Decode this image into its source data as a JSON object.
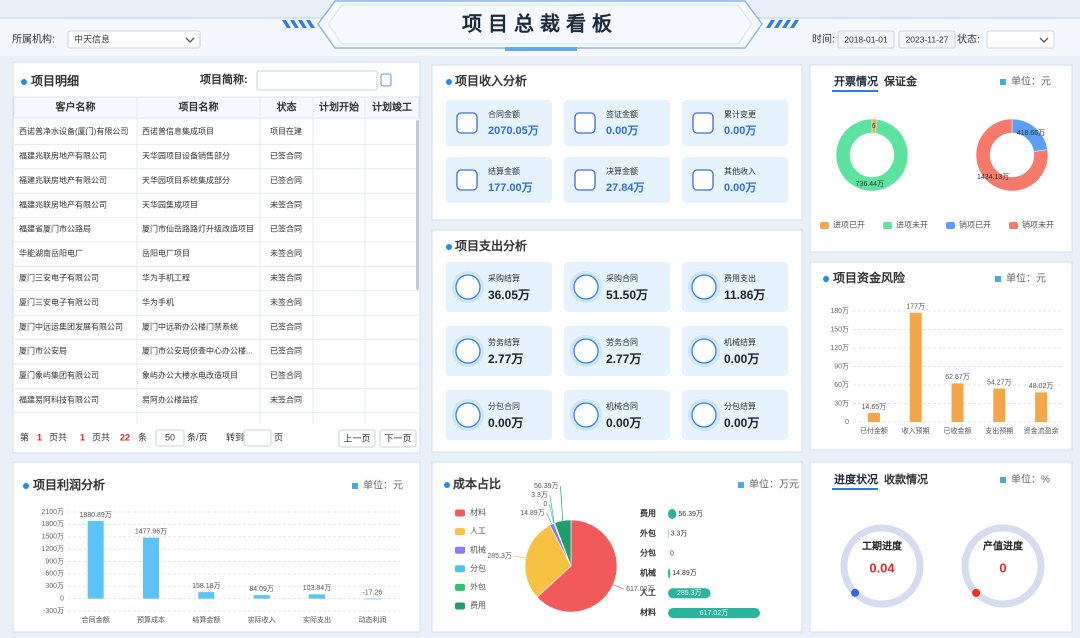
{
  "header": {
    "title": "项目总裁看板",
    "org_label": "所属机构:",
    "org_value": "中天信息",
    "time_label": "时间:",
    "date_start": "2018-01-01",
    "date_end": "2023-11-27",
    "status_label": "状态:"
  },
  "detail": {
    "title": "项目明细",
    "search_label": "项目简称:",
    "columns": [
      "客户名称",
      "项目名称",
      "状态",
      "计划开始",
      "计划竣工"
    ],
    "rows": [
      [
        "西诺普净水设备(厦门)有限公司",
        "西诺普信息集成项目",
        "项目在建"
      ],
      [
        "福建兆联房地产有限公司",
        "天华园项目设备销售部分",
        "已签合同"
      ],
      [
        "福建兆联房地产有限公司",
        "天华园项目系统集成部分",
        "已签合同"
      ],
      [
        "福建兆联房地产有限公司",
        "天华园集成项目",
        "未签合同"
      ],
      [
        "福建省厦门市公路局",
        "厦门市仙岳路路灯升级改造项目",
        "已签合同"
      ],
      [
        "华能湖南岳阳电厂",
        "岳阳电厂项目",
        "未签合同"
      ],
      [
        "厦门三安电子有限公司",
        "华为手机工程",
        "未签合同"
      ],
      [
        "厦门三安电子有限公司",
        "华为手机",
        "未签合同"
      ],
      [
        "厦门中远运集团发展有限公司",
        "厦门中远新办公楼门禁系统",
        "已签合同"
      ],
      [
        "厦门市公安局",
        "厦门市公安局侦查中心办公楼...",
        "已签合同"
      ],
      [
        "厦门象屿集团有限公司",
        "象屿办公大楼水电改造项目",
        "已签合同"
      ],
      [
        "福建易阿科技有限公司",
        "易阿办公楼监控",
        "未签合同"
      ]
    ],
    "pagination": {
      "prefix": "第",
      "page": 1,
      "pages_prefix": "页共",
      "pages": 1,
      "total_prefix": "页共",
      "total": 22,
      "total_suffix": "条",
      "page_size": 50,
      "size_suffix": "条/页",
      "goto": "转到",
      "goto_suffix": "页",
      "prev": "上一页",
      "next": "下一页"
    }
  },
  "income": {
    "title": "项目收入分析",
    "items": [
      {
        "label": "合同金额",
        "value": "2070.05万"
      },
      {
        "label": "签证金额",
        "value": "0.00万"
      },
      {
        "label": "累计变更",
        "value": "0.00万"
      },
      {
        "label": "结算金额",
        "value": "177.00万"
      },
      {
        "label": "决算金额",
        "value": "27.84万"
      },
      {
        "label": "其他收入",
        "value": "0.00万"
      }
    ]
  },
  "expense": {
    "title": "项目支出分析",
    "items": [
      {
        "label": "采购结算",
        "value": "36.05万"
      },
      {
        "label": "采购合同",
        "value": "51.50万"
      },
      {
        "label": "费用支出",
        "value": "11.86万"
      },
      {
        "label": "劳务结算",
        "value": "2.77万"
      },
      {
        "label": "劳务合同",
        "value": "2.77万"
      },
      {
        "label": "机械结算",
        "value": "0.00万"
      },
      {
        "label": "分包合同",
        "value": "0.00万"
      },
      {
        "label": "机械合同",
        "value": "0.00万"
      },
      {
        "label": "分包结算",
        "value": "0.00万"
      }
    ]
  },
  "invoice": {
    "tabs": [
      "开票情况",
      "保证金"
    ],
    "unit": "单位：元",
    "chart_data": {
      "type": "donut",
      "categories": [
        "进项已开",
        "进项未开",
        "销项已开",
        "销项未开"
      ],
      "values": [
        17.62,
        736.44,
        418.66,
        1434.13
      ],
      "value_labels": [
        "17.62万",
        "736.44万",
        "418.66万",
        "1434.13万"
      ],
      "colors": [
        "#f5a54a",
        "#5ce3a0",
        "#5b9ef5",
        "#f57a6a"
      ]
    }
  },
  "risk": {
    "title": "项目资金风险",
    "unit": "单位：元",
    "chart_data": {
      "type": "bar",
      "categories": [
        "已付金额",
        "收入预期",
        "已收金额",
        "支出预期",
        "资金流盈余"
      ],
      "values": [
        14.65,
        177,
        62.67,
        54.27,
        48.02
      ],
      "value_labels": [
        "14.65万",
        "177万",
        "62.67万",
        "54.27万",
        "48.02万"
      ],
      "color": "#f5a54a",
      "ylim": [
        0,
        180
      ],
      "yticks": [
        0,
        {
          "value": 30,
          "label": "30万"
        },
        {
          "value": 60,
          "label": "60万"
        },
        {
          "value": 90,
          "label": "90万"
        },
        {
          "value": 120,
          "label": "120万"
        },
        {
          "value": 150,
          "label": "150万"
        },
        {
          "value": 180,
          "label": "180万"
        }
      ]
    }
  },
  "profit": {
    "title": "项目利润分析",
    "unit": "单位：元",
    "chart_data": {
      "type": "bar",
      "categories": [
        "合同金额",
        "预算成本",
        "结算金额",
        "实际收入",
        "实际支出",
        "动态利润"
      ],
      "values": [
        1880.89,
        1477.96,
        158.18,
        84.09,
        103.84,
        -17.26
      ],
      "value_labels": [
        "1880.89万",
        "1477.96万",
        "158.18万",
        "84.09万",
        "103.84万",
        "-17.26"
      ],
      "color": "#5bc3f7",
      "ylim": [
        -300,
        2100
      ],
      "yticks": [
        {
          "value": -300,
          "label": "-300万"
        },
        0,
        {
          "value": 300,
          "label": "300万"
        },
        {
          "value": 600,
          "label": "600万"
        },
        {
          "value": 900,
          "label": "900万"
        },
        {
          "value": 1200,
          "label": "1200万"
        },
        {
          "value": 1500,
          "label": "1500万"
        },
        {
          "value": 1800,
          "label": "1800万"
        },
        {
          "value": 2100,
          "label": "2100万"
        }
      ]
    }
  },
  "cost": {
    "title": "成本占比",
    "unit": "单位：万元",
    "chart_data": {
      "type": "pie",
      "categories": [
        "材料",
        "人工",
        "机械",
        "分包",
        "外包",
        "费用"
      ],
      "values": [
        617.02,
        285.3,
        14.89,
        0,
        3.3,
        56.39
      ],
      "value_labels": [
        "617.02万",
        "285.3万",
        "14.89万",
        "0",
        "3.3万",
        "56.39万"
      ],
      "colors": [
        "#f25a5a",
        "#f7c242",
        "#8a7cf0",
        "#47c6f0",
        "#2fc26f",
        "#1e9e6c"
      ],
      "bar_color": "#2bb3a0"
    }
  },
  "progress": {
    "tabs": [
      "进度状况",
      "收款情况"
    ],
    "unit": "单位：%",
    "chart_data": {
      "type": "gauge",
      "categories": [
        "工期进度",
        "产值进度"
      ],
      "values": [
        0.04,
        0
      ],
      "colors": [
        "#3a62e8",
        "#f0321a"
      ],
      "value_color": "#f0262a"
    }
  }
}
